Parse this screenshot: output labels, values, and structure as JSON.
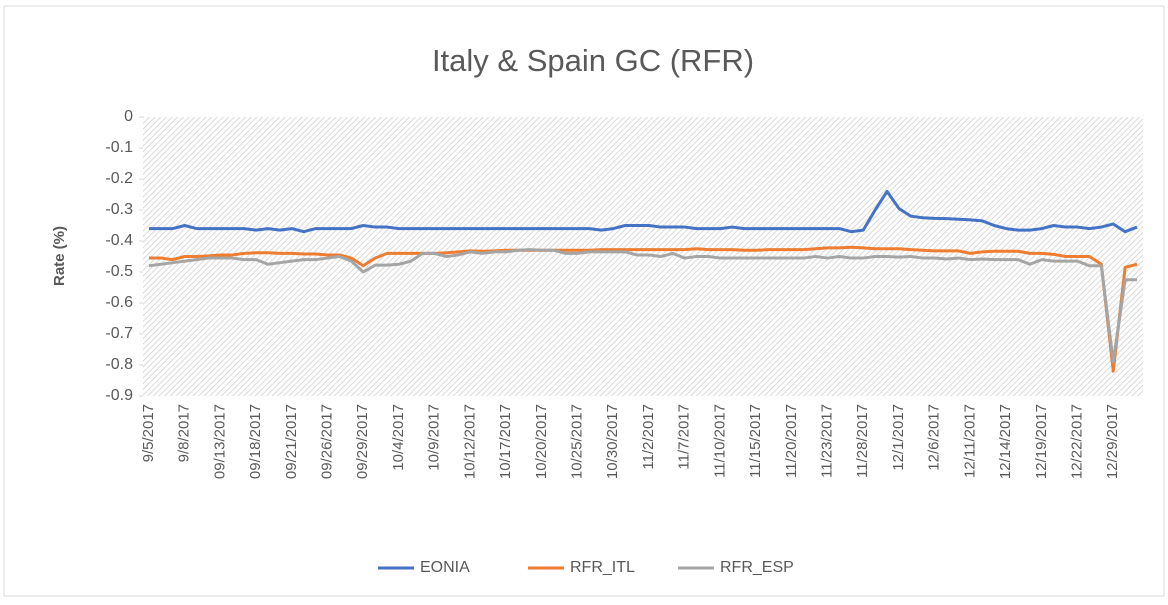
{
  "chart_data": {
    "type": "line",
    "title": "Italy & Spain GC (RFR)",
    "ylabel": "Rate (%)",
    "categories": [
      "9/5/2017",
      null,
      null,
      "9/8/2017",
      null,
      null,
      "09/13/2017",
      null,
      null,
      "09/18/2017",
      null,
      null,
      "09/21/2017",
      null,
      null,
      "09/26/2017",
      null,
      null,
      "09/29/2017",
      null,
      null,
      "10/4/2017",
      null,
      null,
      "10/9/2017",
      null,
      null,
      "10/12/2017",
      null,
      null,
      "10/17/2017",
      null,
      null,
      "10/20/2017",
      null,
      null,
      "10/25/2017",
      null,
      null,
      "10/30/2017",
      null,
      null,
      "11/2/2017",
      null,
      null,
      "11/7/2017",
      null,
      null,
      "11/10/2017",
      null,
      null,
      "11/15/2017",
      null,
      null,
      "11/20/2017",
      null,
      null,
      "11/23/2017",
      null,
      null,
      "11/28/2017",
      null,
      null,
      "12/1/2017",
      null,
      null,
      "12/6/2017",
      null,
      null,
      "12/11/2017",
      null,
      null,
      "12/14/2017",
      null,
      null,
      "12/19/2017",
      null,
      null,
      "12/22/2017",
      null,
      null,
      "12/29/2017",
      null,
      null
    ],
    "series": [
      {
        "name": "EONIA",
        "color": "#4472c4",
        "values": [
          -0.36,
          -0.36,
          -0.36,
          -0.35,
          -0.36,
          -0.36,
          -0.36,
          -0.36,
          -0.36,
          -0.365,
          -0.36,
          -0.365,
          -0.36,
          -0.37,
          -0.36,
          -0.36,
          -0.36,
          -0.36,
          -0.35,
          -0.355,
          -0.355,
          -0.36,
          -0.36,
          -0.36,
          -0.36,
          -0.36,
          -0.36,
          -0.36,
          -0.36,
          -0.36,
          -0.36,
          -0.36,
          -0.36,
          -0.36,
          -0.36,
          -0.36,
          -0.36,
          -0.36,
          -0.365,
          -0.36,
          -0.35,
          -0.35,
          -0.35,
          -0.355,
          -0.355,
          -0.355,
          -0.36,
          -0.36,
          -0.36,
          -0.355,
          -0.36,
          -0.36,
          -0.36,
          -0.36,
          -0.36,
          -0.36,
          -0.36,
          -0.36,
          -0.36,
          -0.37,
          -0.365,
          -0.3,
          -0.24,
          -0.295,
          -0.32,
          -0.325,
          -0.327,
          -0.328,
          -0.33,
          -0.332,
          -0.335,
          -0.35,
          -0.36,
          -0.365,
          -0.365,
          -0.36,
          -0.35,
          -0.355,
          -0.355,
          -0.36,
          -0.355,
          -0.345,
          -0.37,
          -0.355
        ]
      },
      {
        "name": "RFR_ITL",
        "color": "#ed7d31",
        "values": [
          -0.455,
          -0.455,
          -0.46,
          -0.45,
          -0.45,
          -0.448,
          -0.445,
          -0.445,
          -0.44,
          -0.438,
          -0.438,
          -0.44,
          -0.44,
          -0.442,
          -0.442,
          -0.445,
          -0.445,
          -0.455,
          -0.48,
          -0.455,
          -0.44,
          -0.44,
          -0.44,
          -0.44,
          -0.44,
          -0.438,
          -0.435,
          -0.432,
          -0.433,
          -0.432,
          -0.43,
          -0.43,
          -0.43,
          -0.43,
          -0.43,
          -0.43,
          -0.43,
          -0.43,
          -0.428,
          -0.428,
          -0.428,
          -0.428,
          -0.428,
          -0.428,
          -0.428,
          -0.428,
          -0.425,
          -0.428,
          -0.428,
          -0.428,
          -0.43,
          -0.43,
          -0.428,
          -0.428,
          -0.428,
          -0.428,
          -0.425,
          -0.422,
          -0.422,
          -0.42,
          -0.422,
          -0.425,
          -0.425,
          -0.425,
          -0.428,
          -0.43,
          -0.432,
          -0.432,
          -0.432,
          -0.44,
          -0.435,
          -0.433,
          -0.433,
          -0.433,
          -0.44,
          -0.44,
          -0.443,
          -0.45,
          -0.45,
          -0.45,
          -0.475,
          -0.82,
          -0.485,
          -0.475
        ]
      },
      {
        "name": "RFR_ESP",
        "color": "#a5a5a5",
        "values": [
          -0.48,
          -0.475,
          -0.47,
          -0.465,
          -0.46,
          -0.455,
          -0.455,
          -0.455,
          -0.46,
          -0.46,
          -0.475,
          -0.47,
          -0.465,
          -0.46,
          -0.46,
          -0.455,
          -0.45,
          -0.465,
          -0.5,
          -0.478,
          -0.478,
          -0.475,
          -0.465,
          -0.44,
          -0.44,
          -0.45,
          -0.445,
          -0.435,
          -0.44,
          -0.435,
          -0.435,
          -0.43,
          -0.428,
          -0.43,
          -0.43,
          -0.44,
          -0.44,
          -0.435,
          -0.435,
          -0.435,
          -0.435,
          -0.445,
          -0.445,
          -0.45,
          -0.44,
          -0.455,
          -0.45,
          -0.45,
          -0.455,
          -0.455,
          -0.455,
          -0.455,
          -0.455,
          -0.455,
          -0.455,
          -0.455,
          -0.45,
          -0.455,
          -0.45,
          -0.455,
          -0.455,
          -0.45,
          -0.45,
          -0.452,
          -0.45,
          -0.455,
          -0.455,
          -0.458,
          -0.455,
          -0.46,
          -0.458,
          -0.46,
          -0.46,
          -0.46,
          -0.475,
          -0.46,
          -0.465,
          -0.465,
          -0.465,
          -0.48,
          -0.48,
          -0.79,
          -0.525,
          -0.525
        ]
      }
    ],
    "ylim": [
      -0.9,
      0
    ],
    "yticks": [
      0,
      -0.1,
      -0.2,
      -0.3,
      -0.4,
      -0.5,
      -0.6,
      -0.7,
      -0.8,
      -0.9
    ],
    "legend": "bottom"
  }
}
